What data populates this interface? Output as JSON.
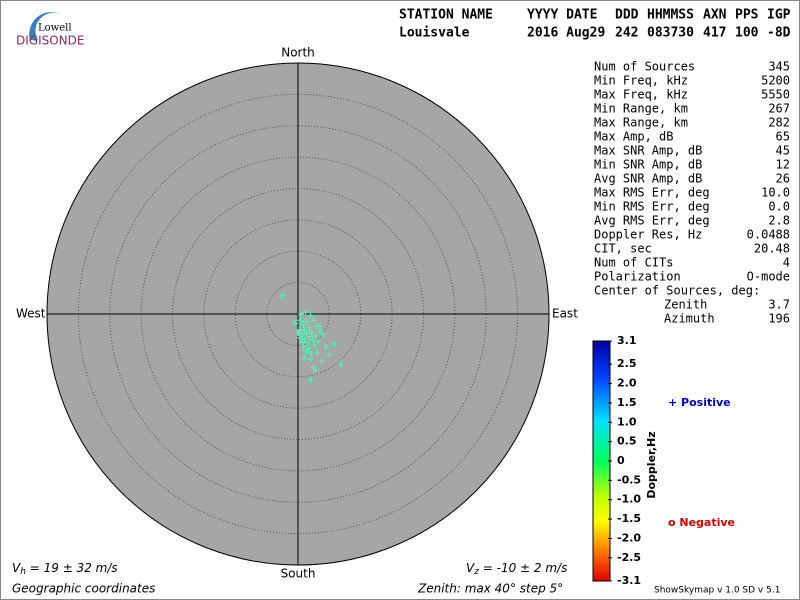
{
  "logo": {
    "top": "Lowell",
    "bottom": "DIGISONDE"
  },
  "header": {
    "labels": [
      "STATION NAME",
      "YYYY DATE",
      "DDD",
      "HHMMSS",
      "AXN",
      "PPS",
      "IGP"
    ],
    "values": [
      "Louisvale",
      "2016 Aug29",
      "242",
      "083730",
      "417",
      "100",
      "-8D"
    ]
  },
  "stats": [
    [
      "Num of Sources",
      "345"
    ],
    [
      "Min Freq, kHz",
      "5200"
    ],
    [
      "Max Freq, kHz",
      "5550"
    ],
    [
      "Min Range, km",
      "267"
    ],
    [
      "Max Range, km",
      "282"
    ],
    [
      "Max Amp, dB",
      "65"
    ],
    [
      "Max SNR Amp, dB",
      "45"
    ],
    [
      "Min SNR Amp, dB",
      "12"
    ],
    [
      "Avg SNR Amp, dB",
      "26"
    ],
    [
      "Max RMS Err, deg",
      "10.0"
    ],
    [
      "Min RMS Err, deg",
      "0.0"
    ],
    [
      "Avg RMS Err, deg",
      "2.8"
    ],
    [
      "Doppler Res, Hz",
      "0.0488"
    ],
    [
      "CIT, sec",
      "20.48"
    ],
    [
      "Num of CITs",
      "4"
    ],
    [
      "Polarization",
      "O-mode"
    ]
  ],
  "center": {
    "title": "Center of Sources, deg:",
    "rows": [
      [
        "Zenith",
        "3.7"
      ],
      [
        "Azimuth",
        "196"
      ]
    ]
  },
  "chart_data": {
    "type": "scatter",
    "directions": {
      "north": "North",
      "south": "South",
      "west": "West",
      "east": "East"
    },
    "zlim": [
      0,
      40
    ],
    "rings": [
      5,
      10,
      15,
      20,
      25,
      30,
      35
    ],
    "color": "#40ffb8",
    "x": [
      -2.5,
      0.5,
      1.2,
      2.0,
      -0.5,
      0.8,
      1.5,
      2.5,
      0.2,
      1.0,
      1.8,
      3.0,
      0.0,
      0.6,
      1.4,
      2.2,
      3.5,
      0.3,
      1.1,
      1.9,
      2.8,
      4.0,
      0.7,
      1.6,
      2.4,
      3.2,
      0.9,
      1.7,
      2.6,
      4.5,
      1.3,
      2.1,
      3.0,
      5.0,
      1.0,
      2.0,
      3.8,
      6.8,
      2.5,
      2.8,
      0.4,
      1.2,
      5.8,
      3.5,
      2.0
    ],
    "y": [
      2.9,
      0.0,
      0.3,
      -0.2,
      -1.5,
      -1.8,
      -1.2,
      -1.0,
      -2.5,
      -2.6,
      -2.2,
      -2.0,
      -3.0,
      -3.3,
      -3.1,
      -2.9,
      -2.8,
      -3.8,
      -4.0,
      -3.6,
      -3.5,
      -3.2,
      -4.5,
      -4.6,
      -4.2,
      -4.4,
      -5.2,
      -5.5,
      -5.0,
      -5.3,
      -6.0,
      -6.3,
      -6.1,
      -6.5,
      -7.0,
      -7.2,
      -7.5,
      -8.0,
      -8.5,
      -9.0,
      -1.0,
      -1.2,
      -4.8,
      -2.0,
      -10.5
    ],
    "colorbar": {
      "label": "Doppler,Hz",
      "lim": [
        -3.1,
        3.1
      ],
      "ticks": [
        3.1,
        2.5,
        {
          "value": 2,
          "label": "2.0"
        },
        1.5,
        {
          "value": 1,
          "label": "1.0"
        },
        0.5,
        0,
        -0.5,
        {
          "value": -1,
          "label": "-1.0"
        },
        -1.5,
        {
          "value": -2,
          "label": "-2.0"
        },
        -2.5,
        -3.1
      ]
    },
    "legend": {
      "positive": "+ Positive",
      "negative": "o Negative"
    }
  },
  "footer": {
    "vh": {
      "symbol": "V",
      "sub": "h",
      "text": " = 19 ± 32 m/s"
    },
    "vz": {
      "symbol": "V",
      "sub": "z",
      "text": " = -10 ± 2 m/s"
    },
    "coords": "Geographic coordinates",
    "zenith": "Zenith: max 40°  step 5°",
    "version": "ShowSkymap v 1.0  SD v 5.1"
  }
}
